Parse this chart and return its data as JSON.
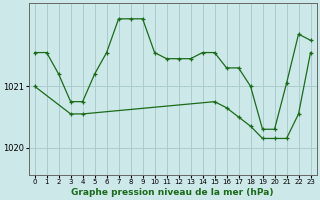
{
  "xlabel": "Graphe pression niveau de la mer (hPa)",
  "background_color": "#cce8e8",
  "plot_bg_color": "#cce8e8",
  "grid_color": "#aacccc",
  "line_color": "#1a6b1a",
  "yticks": [
    1020,
    1021
  ],
  "ylim": [
    1019.55,
    1022.35
  ],
  "xlim": [
    -0.5,
    23.5
  ],
  "xticks": [
    0,
    1,
    2,
    3,
    4,
    5,
    6,
    7,
    8,
    9,
    10,
    11,
    12,
    13,
    14,
    15,
    16,
    17,
    18,
    19,
    20,
    21,
    22,
    23
  ],
  "series1_x": [
    0,
    1,
    2,
    3,
    4,
    5,
    6,
    7,
    8,
    9,
    10,
    11,
    12,
    13,
    14,
    15,
    16,
    17,
    18,
    19,
    20,
    21,
    22,
    23
  ],
  "series1_y": [
    1021.55,
    1021.55,
    1021.2,
    1020.75,
    1020.75,
    1021.2,
    1021.55,
    1022.1,
    1022.1,
    1022.1,
    1021.55,
    1021.45,
    1021.45,
    1021.45,
    1021.55,
    1021.55,
    1021.3,
    1021.3,
    1021.0,
    1020.3,
    1020.3,
    1021.05,
    1021.85,
    1021.75
  ],
  "series2_x": [
    0,
    3,
    4,
    15,
    16,
    17,
    18,
    19,
    20,
    21,
    22,
    23
  ],
  "series2_y": [
    1021.0,
    1020.55,
    1020.55,
    1020.75,
    1020.65,
    1020.5,
    1020.35,
    1020.15,
    1020.15,
    1020.15,
    1020.55,
    1021.55
  ]
}
